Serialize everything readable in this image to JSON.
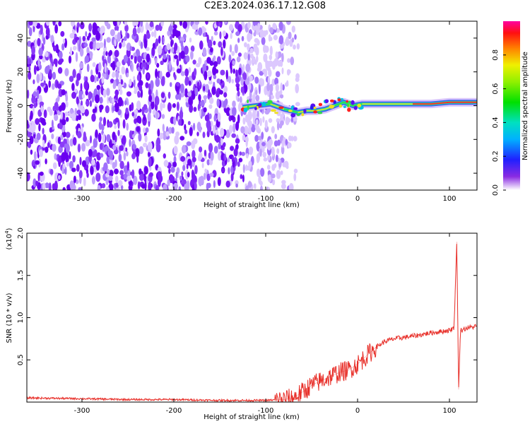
{
  "title": "C2E3.2024.036.17.12.G08",
  "chart_data": [
    {
      "type": "heatmap",
      "xlabel": "Height of straight line (km)",
      "ylabel": "Frequency (Hz)",
      "xlim": [
        -360,
        130
      ],
      "ylim": [
        -50,
        50
      ],
      "xticks": [
        -300,
        -200,
        -100,
        0,
        100
      ],
      "yticks": [
        -40,
        -20,
        0,
        20,
        40
      ],
      "noise_region_km": [
        -360,
        -80
      ],
      "signal_track": {
        "x": [
          -125,
          -110,
          -95,
          -80,
          -65,
          -55,
          -45,
          -35,
          -25,
          -15,
          -5,
          5,
          20,
          40,
          60,
          80,
          100,
          108,
          120,
          130
        ],
        "freq_hz": [
          -1,
          0,
          1,
          -2,
          -4,
          -3,
          -3,
          -2,
          0,
          2,
          0,
          1,
          1,
          1,
          1,
          1,
          2,
          2,
          2,
          2
        ]
      },
      "colorbar": {
        "label": "Normalized spectral amplitude",
        "range": [
          0,
          1
        ],
        "ticks": [
          "0.0",
          "0.2",
          "0.4",
          "0.6",
          "0.8"
        ],
        "colormap": "rainbow"
      }
    },
    {
      "type": "line",
      "xlabel": "Height of straight line (km)",
      "ylabel": "SNR (10 * v/v)",
      "scale_label": "(x10",
      "scale_exp": "4",
      "scale_close": ")",
      "xlim": [
        -360,
        130
      ],
      "ylim": [
        0,
        2.0
      ],
      "xticks": [
        -300,
        -200,
        -100,
        0,
        100
      ],
      "yticks": [
        "0.5",
        "1.0",
        "1.5",
        "2.0"
      ],
      "color": "#e8302a",
      "series": [
        {
          "x": [
            -360,
            -300,
            -250,
            -200,
            -150,
            -120,
            -100,
            -80,
            -70,
            -60,
            -50,
            -40,
            -30,
            -20,
            -10,
            0,
            10,
            20,
            30,
            40,
            60,
            80,
            100,
            105,
            108,
            110,
            112,
            120,
            130
          ],
          "y": [
            0.05,
            0.04,
            0.03,
            0.03,
            0.02,
            0.02,
            0.02,
            0.03,
            0.05,
            0.12,
            0.2,
            0.25,
            0.3,
            0.35,
            0.38,
            0.45,
            0.55,
            0.65,
            0.72,
            0.75,
            0.78,
            0.82,
            0.85,
            0.88,
            1.9,
            0.15,
            0.85,
            0.88,
            0.9
          ]
        }
      ]
    }
  ]
}
